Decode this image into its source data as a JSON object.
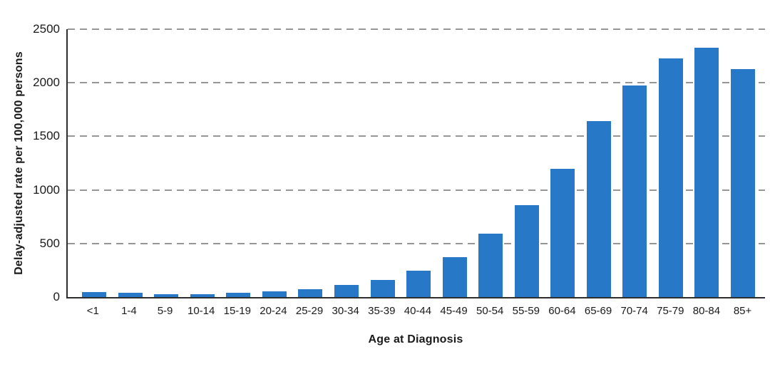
{
  "chart_data": {
    "type": "bar",
    "title": "",
    "xlabel": "Age at Diagnosis",
    "ylabel": "Delay-adjusted rate per 100,000 persons",
    "categories": [
      "<1",
      "1-4",
      "5-9",
      "10-14",
      "15-19",
      "20-24",
      "25-29",
      "30-34",
      "35-39",
      "40-44",
      "45-49",
      "50-54",
      "55-59",
      "60-64",
      "65-69",
      "70-74",
      "75-79",
      "80-84",
      "85+"
    ],
    "values": [
      45,
      40,
      30,
      28,
      40,
      55,
      70,
      110,
      160,
      245,
      375,
      590,
      855,
      1195,
      1645,
      1975,
      2225,
      2325,
      2130
    ],
    "ylim": [
      0,
      2500
    ],
    "yticks": [
      0,
      500,
      1000,
      1500,
      2000,
      2500
    ],
    "grid": "horizontal dashed gridlines at every y tick including top",
    "legend": "none",
    "colors": {
      "bar": "#2878c8",
      "gridline": "#969696",
      "axis": "#2e2e2e",
      "text": "#1a1a1a",
      "background": "#ffffff"
    }
  }
}
